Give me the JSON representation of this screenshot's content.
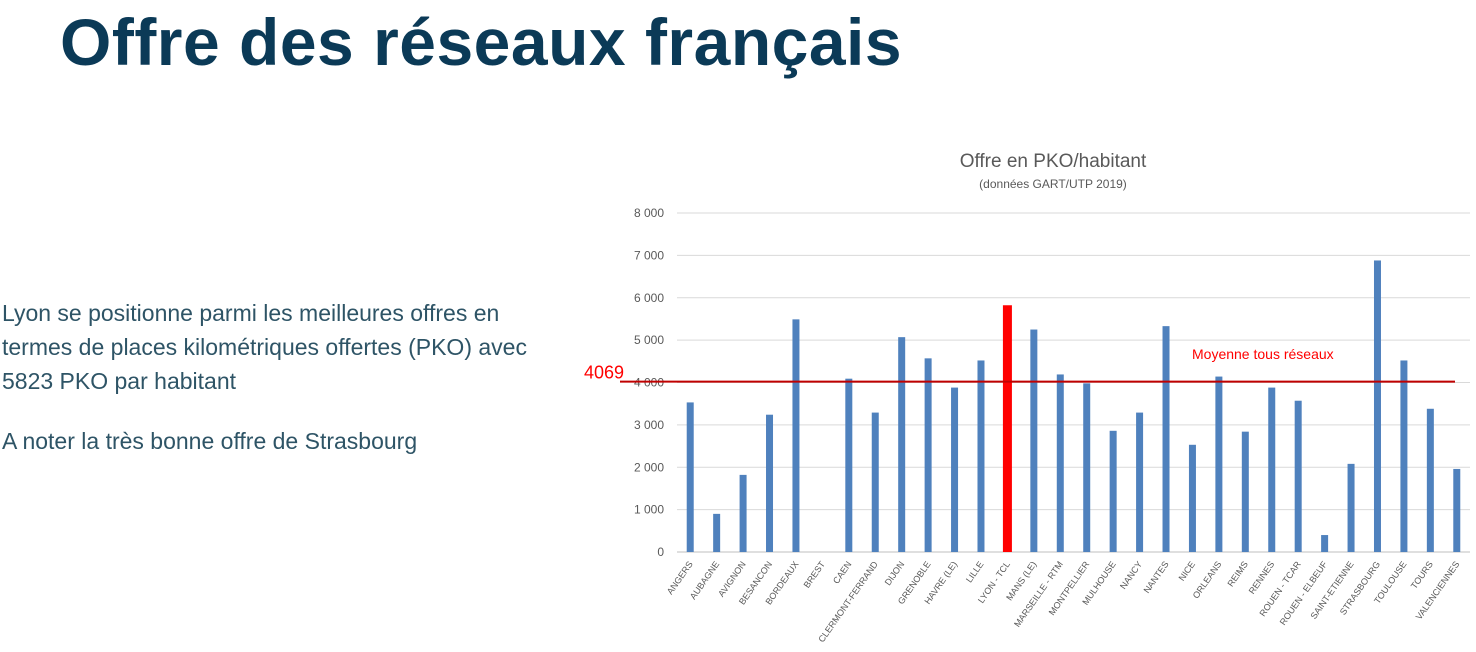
{
  "slide": {
    "title": "Offre des réseaux français",
    "paragraph1": "Lyon se positionne parmi les meilleures offres en termes de places kilométriques offertes (PKO) avec 5823 PKO par habitant",
    "paragraph2": "A noter la très bonne offre de Strasbourg"
  },
  "chart_data": {
    "type": "bar",
    "title": "Offre en PKO/habitant",
    "subtitle": "(données GART/UTP 2019)",
    "ylim": [
      0,
      8000
    ],
    "yticks": [
      "0",
      "1 000",
      "2 000",
      "3 000",
      "4 000",
      "5 000",
      "6 000",
      "7 000",
      "8 000"
    ],
    "grid": true,
    "categories": [
      "ANGERS",
      "AUBAGNE",
      "AVIGNON",
      "BESANCON",
      "BORDEAUX",
      "BREST",
      "CAEN",
      "CLERMONT-FERRAND",
      "DIJON",
      "GRENOBLE",
      "HAVRE (LE)",
      "LILLE",
      "LYON - TCL",
      "MANS (LE)",
      "MARSEILLE - RTM",
      "MONTPELLIER",
      "MULHOUSE",
      "NANCY",
      "NANTES",
      "NICE",
      "ORLEANS",
      "REIMS",
      "RENNES",
      "ROUEN - TCAR",
      "ROUEN - ELBEUF",
      "SAINT-ETIENNE",
      "STRASBOURG",
      "TOULOUSE",
      "TOURS",
      "VALENCIENNES"
    ],
    "values": [
      3530,
      900,
      1820,
      3240,
      5490,
      0,
      4090,
      3290,
      5070,
      4570,
      3880,
      4520,
      5823,
      5250,
      4190,
      3980,
      2860,
      3290,
      5330,
      2530,
      4140,
      2840,
      3880,
      3570,
      400,
      2080,
      6880,
      4520,
      3380,
      1960
    ],
    "bar_color": "#4f81bd",
    "highlight": {
      "category": "LYON - TCL",
      "color": "#ff0000"
    },
    "reference_line": {
      "value": 4069,
      "value_label": "4069",
      "label": "Moyenne tous réseaux",
      "color": "#c00000",
      "label_color": "#ff0000"
    }
  }
}
